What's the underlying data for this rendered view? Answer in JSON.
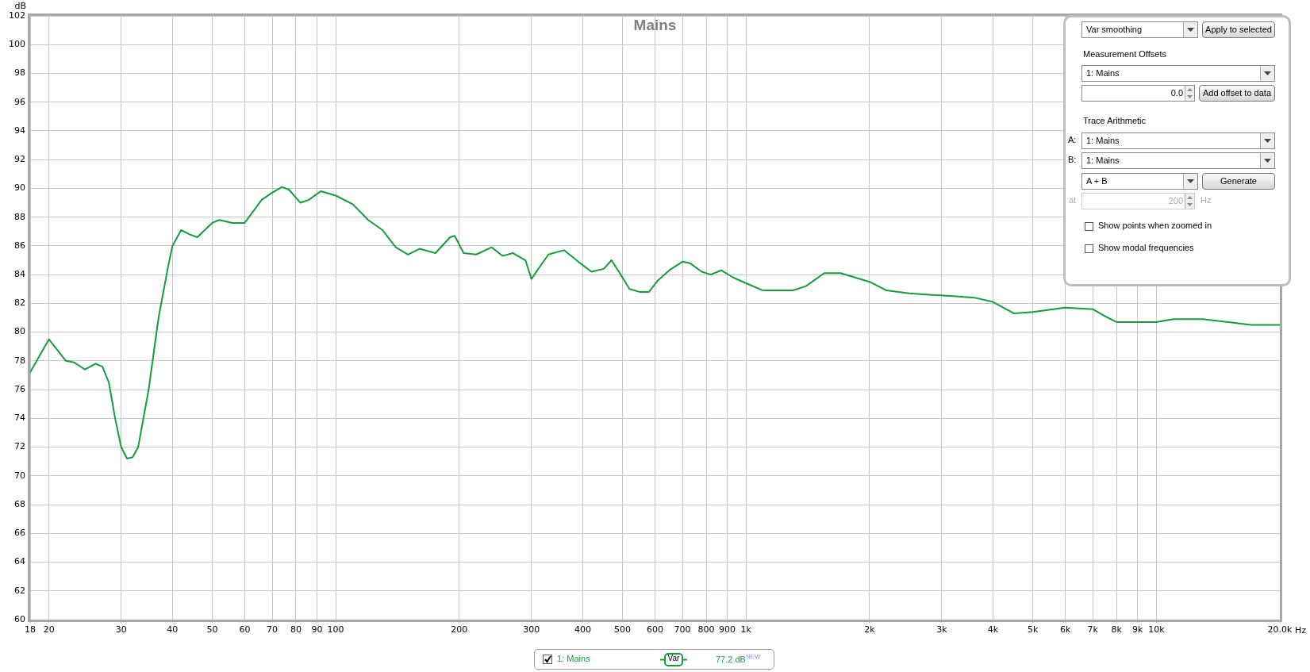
{
  "chart_data": {
    "type": "line",
    "title": "Mains",
    "xlabel": "Hz",
    "ylabel": "dB",
    "log": "x",
    "grid": true,
    "legend": "bottom",
    "marker": "none",
    "line_style": "solid",
    "xlim": [
      18,
      20000
    ],
    "xticks": [
      18,
      20,
      30,
      40,
      50,
      60,
      70,
      80,
      90,
      100,
      200,
      300,
      400,
      500,
      600,
      700,
      800,
      900,
      {
        "value": 1000,
        "label": "1k"
      },
      {
        "value": 2000,
        "label": "2k"
      },
      {
        "value": 3000,
        "label": "3k"
      },
      {
        "value": 4000,
        "label": "4k"
      },
      {
        "value": 5000,
        "label": "5k"
      },
      {
        "value": 6000,
        "label": "6k"
      },
      {
        "value": 7000,
        "label": "7k"
      },
      {
        "value": 8000,
        "label": "8k"
      },
      {
        "value": 9000,
        "label": "9k"
      },
      {
        "value": 10000,
        "label": "10k"
      },
      {
        "value": 20000,
        "label": "20.0k"
      }
    ],
    "ylim": [
      60,
      102
    ],
    "yticks": [
      60,
      62,
      64,
      66,
      68,
      70,
      72,
      74,
      76,
      78,
      80,
      82,
      84,
      86,
      88,
      90,
      92,
      94,
      96,
      98,
      100,
      102
    ],
    "x": [
      18,
      20,
      22,
      23,
      24.5,
      26,
      27,
      28,
      29,
      30,
      31,
      32,
      33,
      35,
      37,
      39,
      40,
      42,
      44,
      46,
      50,
      52,
      56,
      60,
      66,
      70,
      74,
      77,
      82,
      86,
      92,
      100,
      110,
      120,
      130,
      140,
      150,
      160,
      175,
      190,
      195,
      205,
      220,
      240,
      255,
      270,
      290,
      300,
      310,
      330,
      360,
      390,
      420,
      450,
      470,
      490,
      520,
      550,
      580,
      610,
      650,
      700,
      730,
      780,
      820,
      870,
      930,
      1000,
      1100,
      1300,
      1400,
      1550,
      1700,
      2000,
      2200,
      2500,
      2800,
      3200,
      3600,
      4000,
      4500,
      5000,
      6000,
      7000,
      7500,
      8000,
      9000,
      10000,
      11000,
      13000,
      15000,
      17000,
      20000
    ],
    "series": [
      {
        "name": "1: Mains",
        "color": "#169b3c",
        "values": [
          77.2,
          79.5,
          78.0,
          77.9,
          77.4,
          77.8,
          77.6,
          76.5,
          74,
          72.0,
          71.2,
          71.3,
          72,
          76,
          81,
          84.5,
          86,
          87.1,
          86.8,
          86.6,
          87.6,
          87.8,
          87.6,
          87.6,
          89.2,
          89.7,
          90.1,
          89.9,
          89.0,
          89.2,
          89.8,
          89.5,
          88.9,
          87.8,
          87.1,
          85.9,
          85.4,
          85.8,
          85.5,
          86.6,
          86.7,
          85.5,
          85.4,
          85.9,
          85.3,
          85.5,
          85.0,
          83.7,
          84.3,
          85.4,
          85.7,
          84.9,
          84.2,
          84.4,
          85.0,
          84.2,
          83.0,
          82.8,
          82.8,
          83.6,
          84.3,
          84.9,
          84.8,
          84.2,
          84.0,
          84.3,
          83.8,
          83.4,
          82.9,
          82.9,
          83.2,
          84.1,
          84.1,
          83.5,
          82.9,
          82.7,
          82.6,
          82.5,
          82.4,
          82.1,
          81.3,
          81.4,
          81.7,
          81.6,
          81.1,
          80.7,
          80.7,
          80.7,
          80.9,
          80.9,
          80.7,
          80.5,
          80.5
        ]
      }
    ],
    "annotations": [
      "Var",
      "77.2 dB$^{NEW}$",
      "Var smoothing",
      "Apply to selected",
      "Measurement Offsets",
      "1: Mains",
      "0.0",
      "Add offset to data",
      "Trace Arithmetic",
      "A:",
      "1: Mains",
      "B:",
      "1: Mains",
      "A + B",
      "Generate",
      "at",
      "200",
      "Hz",
      "Show points when zoomed in",
      "Show modal frequencies"
    ]
  }
}
